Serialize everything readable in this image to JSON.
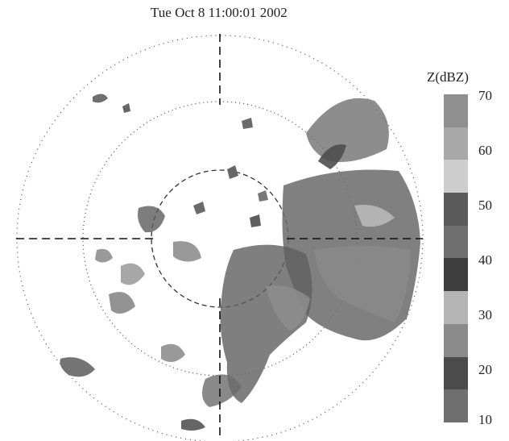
{
  "timestamp": "Tue Oct 8 11:00:01 2002",
  "colorbar": {
    "title": "Z(dBZ)",
    "ticks": [
      "70",
      "60",
      "50",
      "40",
      "30",
      "20",
      "10"
    ],
    "segments": [
      "#8f8f8f",
      "#a8a8a8",
      "#cdcdcd",
      "#5a5a5a",
      "#6e6e6e",
      "#3d3d3d",
      "#b4b4b4",
      "#8a8a8a",
      "#4b4b4b",
      "#6f6f6f"
    ]
  }
}
